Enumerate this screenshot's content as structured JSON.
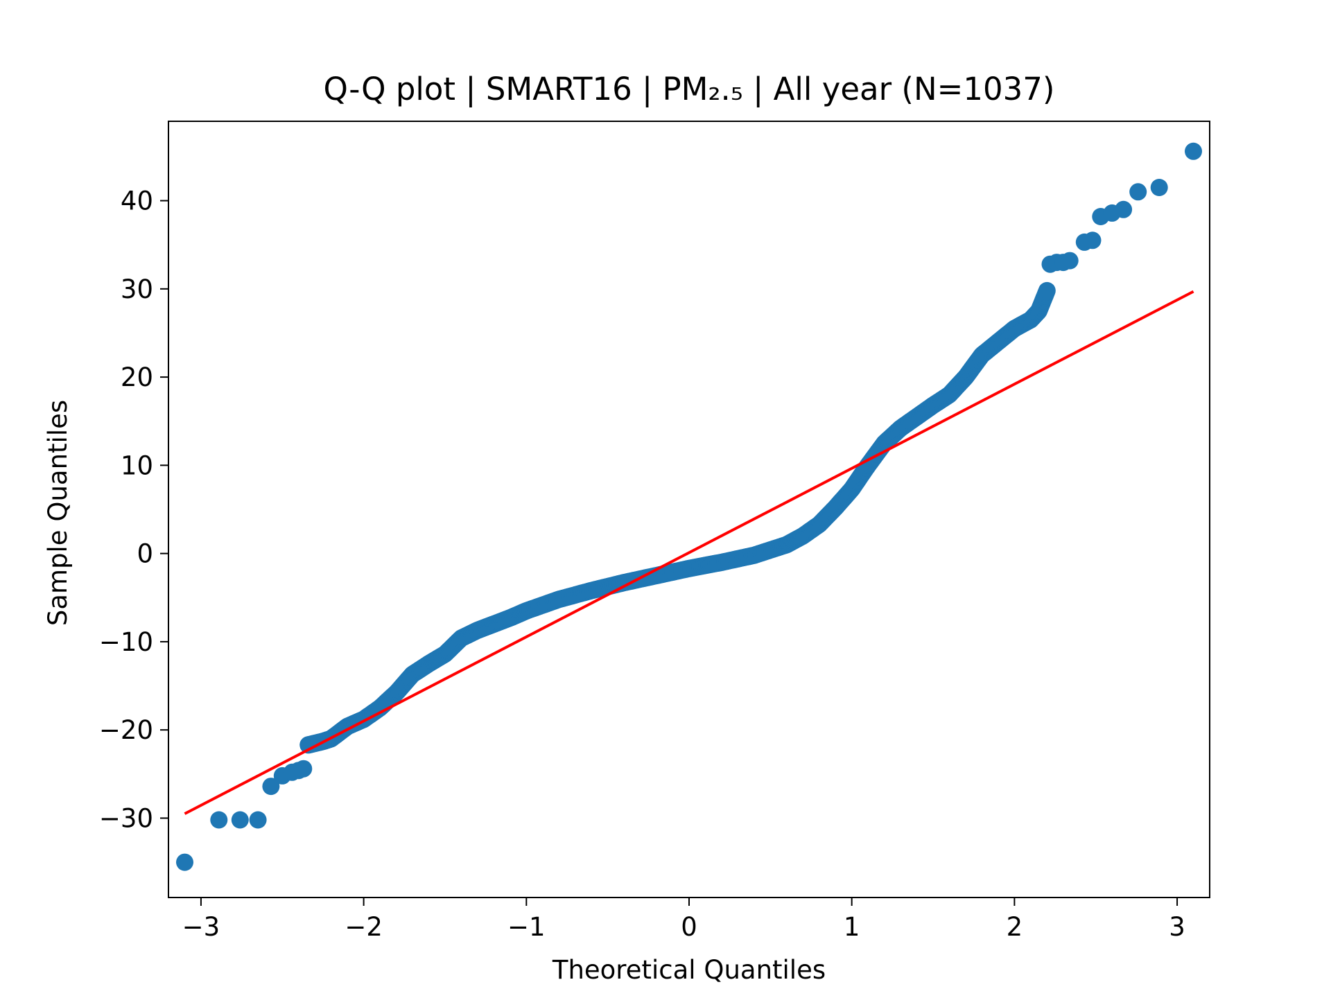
{
  "chart_data": {
    "type": "scatter",
    "title": "Q-Q plot | SMART16 | PM₂.₅ | All year (N=1037)",
    "xlabel": "Theoretical Quantiles",
    "ylabel": "Sample Quantiles",
    "xlim": [
      -3.2,
      3.2
    ],
    "ylim": [
      -39,
      49
    ],
    "xticks": [
      {
        "value": -3,
        "label": "−3"
      },
      {
        "value": -2,
        "label": "−2"
      },
      {
        "value": -1,
        "label": "−1"
      },
      {
        "value": 0,
        "label": "0"
      },
      {
        "value": 1,
        "label": "1"
      },
      {
        "value": 2,
        "label": "2"
      },
      {
        "value": 3,
        "label": "3"
      }
    ],
    "yticks": [
      {
        "value": -30,
        "label": "−30"
      },
      {
        "value": -20,
        "label": "−20"
      },
      {
        "value": -10,
        "label": "−10"
      },
      {
        "value": 0,
        "label": "0"
      },
      {
        "value": 10,
        "label": "10"
      },
      {
        "value": 20,
        "label": "20"
      },
      {
        "value": 30,
        "label": "30"
      },
      {
        "value": 40,
        "label": "40"
      }
    ],
    "grid": false,
    "point_color": "#1f77b4",
    "line_color": "#ff0000",
    "reference_line": {
      "x": [
        -3.1,
        3.1
      ],
      "y": [
        -29.5,
        29.7
      ]
    },
    "outliers": [
      {
        "x": -3.1,
        "y": -35.0
      },
      {
        "x": -2.89,
        "y": -30.2
      },
      {
        "x": -2.76,
        "y": -30.2
      },
      {
        "x": -2.65,
        "y": -30.2
      },
      {
        "x": -2.57,
        "y": -26.4
      },
      {
        "x": -2.5,
        "y": -25.2
      },
      {
        "x": -2.44,
        "y": -24.8
      },
      {
        "x": -2.4,
        "y": -24.6
      },
      {
        "x": -2.37,
        "y": -24.4
      },
      {
        "x": -2.34,
        "y": -21.7
      },
      {
        "x": 2.22,
        "y": 32.8
      },
      {
        "x": 2.26,
        "y": 33.0
      },
      {
        "x": 2.3,
        "y": 33.0
      },
      {
        "x": 2.34,
        "y": 33.2
      },
      {
        "x": 2.43,
        "y": 35.3
      },
      {
        "x": 2.48,
        "y": 35.5
      },
      {
        "x": 2.53,
        "y": 38.2
      },
      {
        "x": 2.6,
        "y": 38.6
      },
      {
        "x": 2.67,
        "y": 39.0
      },
      {
        "x": 2.76,
        "y": 41.0
      },
      {
        "x": 2.89,
        "y": 41.5
      },
      {
        "x": 3.1,
        "y": 45.6
      }
    ],
    "quantile_curve": [
      [
        -2.34,
        -21.7
      ],
      [
        -2.25,
        -21.3
      ],
      [
        -2.2,
        -21.0
      ],
      [
        -2.15,
        -20.3
      ],
      [
        -2.1,
        -19.6
      ],
      [
        -2.0,
        -18.8
      ],
      [
        -1.9,
        -17.5
      ],
      [
        -1.8,
        -15.8
      ],
      [
        -1.7,
        -13.7
      ],
      [
        -1.6,
        -12.5
      ],
      [
        -1.5,
        -11.4
      ],
      [
        -1.4,
        -9.6
      ],
      [
        -1.3,
        -8.7
      ],
      [
        -1.2,
        -8.0
      ],
      [
        -1.1,
        -7.3
      ],
      [
        -1.0,
        -6.5
      ],
      [
        -0.8,
        -5.2
      ],
      [
        -0.6,
        -4.2
      ],
      [
        -0.4,
        -3.3
      ],
      [
        -0.2,
        -2.5
      ],
      [
        0.0,
        -1.7
      ],
      [
        0.2,
        -1.0
      ],
      [
        0.4,
        -0.2
      ],
      [
        0.6,
        1.0
      ],
      [
        0.7,
        2.0
      ],
      [
        0.8,
        3.3
      ],
      [
        0.9,
        5.2
      ],
      [
        1.0,
        7.3
      ],
      [
        1.1,
        10.0
      ],
      [
        1.2,
        12.5
      ],
      [
        1.3,
        14.2
      ],
      [
        1.4,
        15.5
      ],
      [
        1.5,
        16.8
      ],
      [
        1.6,
        18.0
      ],
      [
        1.7,
        20.0
      ],
      [
        1.8,
        22.5
      ],
      [
        1.9,
        24.0
      ],
      [
        2.0,
        25.5
      ],
      [
        2.1,
        26.5
      ],
      [
        2.15,
        27.5
      ],
      [
        2.2,
        29.8
      ]
    ],
    "sample_count": 1037
  }
}
